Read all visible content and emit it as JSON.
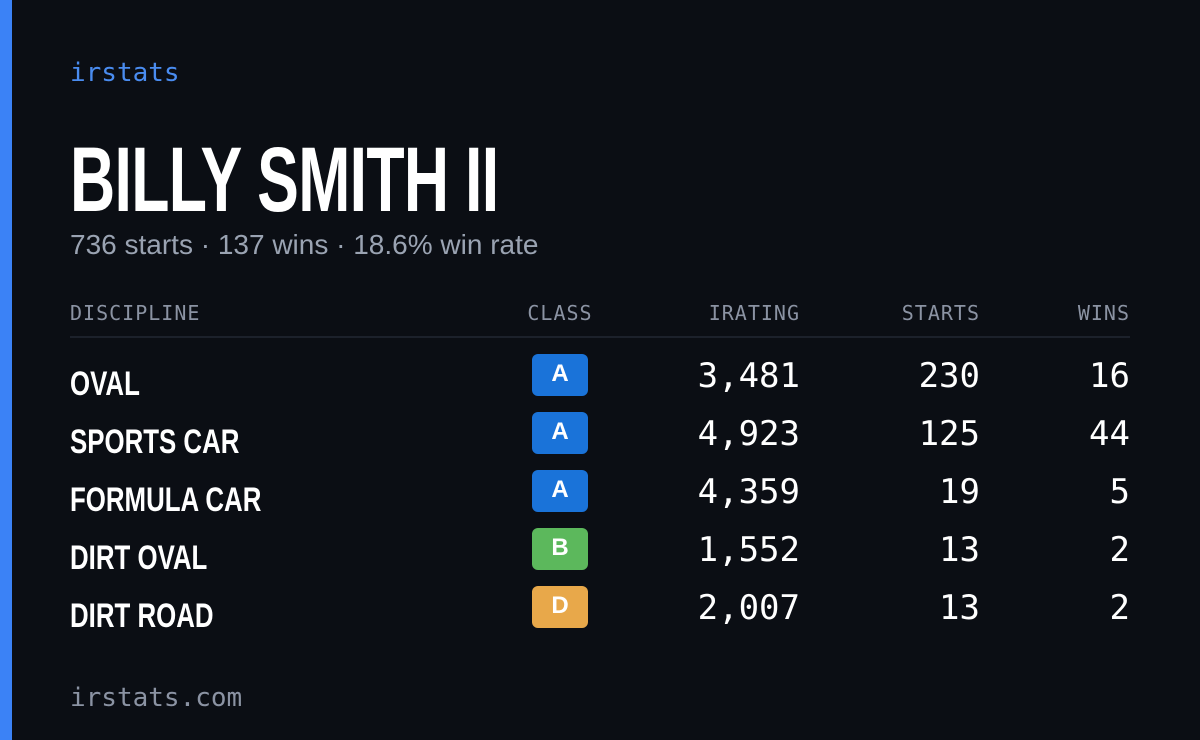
{
  "header": {
    "brand": "irstats",
    "title": "BILLY SMITH II",
    "subtitle": "736 starts · 137 wins · 18.6% win rate"
  },
  "table": {
    "columns": [
      "DISCIPLINE",
      "CLASS",
      "IRATING",
      "STARTS",
      "WINS"
    ],
    "rows": [
      {
        "discipline": "OVAL",
        "class": "A",
        "class_color": "#1a73d9",
        "irating": "3,481",
        "starts": "230",
        "wins": "16"
      },
      {
        "discipline": "SPORTS CAR",
        "class": "A",
        "class_color": "#1a73d9",
        "irating": "4,923",
        "starts": "125",
        "wins": "44"
      },
      {
        "discipline": "FORMULA CAR",
        "class": "A",
        "class_color": "#1a73d9",
        "irating": "4,359",
        "starts": "19",
        "wins": "5"
      },
      {
        "discipline": "DIRT OVAL",
        "class": "B",
        "class_color": "#5cb85c",
        "irating": "1,552",
        "starts": "13",
        "wins": "2"
      },
      {
        "discipline": "DIRT ROAD",
        "class": "D",
        "class_color": "#e8a84a",
        "irating": "2,007",
        "starts": "13",
        "wins": "2"
      }
    ]
  },
  "footer": {
    "url": "irstats.com"
  }
}
